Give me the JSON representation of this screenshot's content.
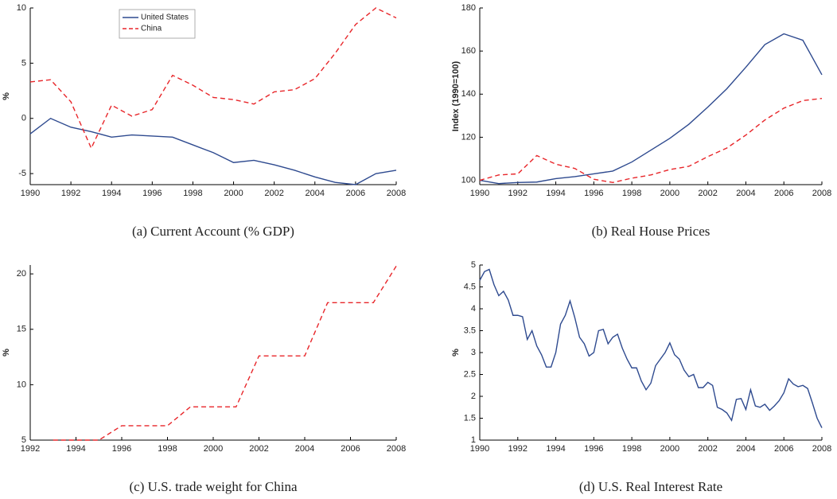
{
  "chart_data": [
    {
      "type": "line",
      "caption": "(a) Current Account (% GDP)",
      "ylabel": "%",
      "x": [
        1990,
        1991,
        1992,
        1993,
        1994,
        1995,
        1996,
        1997,
        1998,
        1999,
        2000,
        2001,
        2002,
        2003,
        2004,
        2005,
        2006,
        2007,
        2008
      ],
      "series": [
        {
          "name": "United States",
          "color": "#2e4a8f",
          "linestyle": "solid",
          "values": [
            -1.4,
            0.0,
            -0.8,
            -1.2,
            -1.7,
            -1.5,
            -1.6,
            -1.7,
            -2.4,
            -3.1,
            -4.0,
            -3.8,
            -4.2,
            -4.7,
            -5.3,
            -5.8,
            -6.0,
            -5.0,
            -4.7
          ]
        },
        {
          "name": "China",
          "color": "#e8262a",
          "linestyle": "dashed",
          "values": [
            3.3,
            3.5,
            1.5,
            -2.7,
            1.2,
            0.2,
            0.8,
            3.9,
            3.0,
            1.9,
            1.7,
            1.3,
            2.4,
            2.6,
            3.6,
            5.9,
            8.5,
            10.0,
            9.1
          ]
        }
      ],
      "xlim": [
        1990,
        2008
      ],
      "xticks": [
        1990,
        1992,
        1994,
        1996,
        1998,
        2000,
        2002,
        2004,
        2006,
        2008
      ],
      "ylim": [
        -6,
        10
      ],
      "yticks": [
        -5,
        0,
        5,
        10
      ],
      "legend": "upper left"
    },
    {
      "type": "line",
      "caption": "(b) Real House Prices",
      "ylabel": "Index (1990=100)",
      "x": [
        1990,
        1991,
        1992,
        1993,
        1994,
        1995,
        1996,
        1997,
        1998,
        1999,
        2000,
        2001,
        2002,
        2003,
        2004,
        2005,
        2006,
        2007,
        2008
      ],
      "series": [
        {
          "color": "#2e4a8f",
          "linestyle": "solid",
          "values": [
            100,
            98.5,
            99,
            99.2,
            100.8,
            101.7,
            103,
            104.3,
            108.5,
            114,
            119.5,
            126,
            134,
            142.5,
            152.5,
            163,
            168,
            165,
            149
          ]
        },
        {
          "color": "#e8262a",
          "linestyle": "dashed",
          "values": [
            100,
            102.5,
            103,
            111.5,
            107.5,
            105.5,
            100.5,
            99,
            101,
            102.5,
            105,
            106.5,
            111,
            115,
            121,
            128,
            133.5,
            137,
            138
          ]
        }
      ],
      "xlim": [
        1990,
        2008
      ],
      "xticks": [
        1990,
        1992,
        1994,
        1996,
        1998,
        2000,
        2002,
        2004,
        2006,
        2008
      ],
      "ylim": [
        98,
        180
      ],
      "yticks": [
        100,
        120,
        140,
        160,
        180
      ]
    },
    {
      "type": "line",
      "caption": "(c) U.S. trade weight for China",
      "ylabel": "%",
      "x": [
        1993,
        1994,
        1995,
        1996,
        1997,
        1998,
        1999,
        2000,
        2001,
        2002,
        2003,
        2004,
        2005,
        2006,
        2007,
        2008
      ],
      "series": [
        {
          "color": "#e8262a",
          "linestyle": "dashed",
          "values": [
            5,
            5,
            5,
            6.3,
            6.3,
            6.3,
            8,
            8,
            8,
            12.6,
            12.6,
            12.6,
            17.4,
            17.4,
            17.4,
            20.7
          ]
        }
      ],
      "xlim": [
        1992,
        2008
      ],
      "xticks": [
        1992,
        1994,
        1996,
        1998,
        2000,
        2002,
        2004,
        2006,
        2008
      ],
      "ylim": [
        5,
        20.8
      ],
      "yticks": [
        5,
        10,
        15,
        20
      ]
    },
    {
      "type": "line",
      "caption": "(d) U.S. Real Interest Rate",
      "ylabel": "%",
      "x": [
        1990,
        1990.25,
        1990.5,
        1990.75,
        1991,
        1991.25,
        1991.5,
        1991.75,
        1992,
        1992.25,
        1992.5,
        1992.75,
        1993,
        1993.25,
        1993.5,
        1993.75,
        1994,
        1994.25,
        1994.5,
        1994.75,
        1995,
        1995.25,
        1995.5,
        1995.75,
        1996,
        1996.25,
        1996.5,
        1996.75,
        1997,
        1997.25,
        1997.5,
        1997.75,
        1998,
        1998.25,
        1998.5,
        1998.75,
        1999,
        1999.25,
        1999.5,
        1999.75,
        2000,
        2000.25,
        2000.5,
        2000.75,
        2001,
        2001.25,
        2001.5,
        2001.75,
        2002,
        2002.25,
        2002.5,
        2002.75,
        2003,
        2003.25,
        2003.5,
        2003.75,
        2004,
        2004.25,
        2004.5,
        2004.75,
        2005,
        2005.25,
        2005.5,
        2005.75,
        2006,
        2006.25,
        2006.5,
        2006.75,
        2007,
        2007.25,
        2007.5,
        2007.75,
        2008
      ],
      "series": [
        {
          "color": "#2e4a8f",
          "linestyle": "solid",
          "values": [
            4.65,
            4.85,
            4.9,
            4.55,
            4.3,
            4.4,
            4.2,
            3.85,
            3.85,
            3.82,
            3.3,
            3.5,
            3.15,
            2.95,
            2.67,
            2.67,
            3.0,
            3.65,
            3.85,
            4.18,
            3.8,
            3.35,
            3.2,
            2.92,
            3.0,
            3.5,
            3.53,
            3.2,
            3.35,
            3.42,
            3.1,
            2.85,
            2.65,
            2.65,
            2.35,
            2.15,
            2.3,
            2.7,
            2.85,
            3.0,
            3.22,
            2.95,
            2.85,
            2.6,
            2.45,
            2.5,
            2.2,
            2.2,
            2.32,
            2.25,
            1.75,
            1.7,
            1.62,
            1.45,
            1.93,
            1.95,
            1.7,
            2.15,
            1.78,
            1.75,
            1.82,
            1.68,
            1.78,
            1.9,
            2.08,
            2.4,
            2.28,
            2.22,
            2.25,
            2.18,
            1.85,
            1.5,
            1.28
          ]
        }
      ],
      "xlim": [
        1990,
        2008
      ],
      "xticks": [
        1990,
        1992,
        1994,
        1996,
        1998,
        2000,
        2002,
        2004,
        2006,
        2008
      ],
      "ylim": [
        1,
        5
      ],
      "yticks": [
        1,
        1.5,
        2,
        2.5,
        3,
        3.5,
        4,
        4.5,
        5
      ]
    }
  ]
}
